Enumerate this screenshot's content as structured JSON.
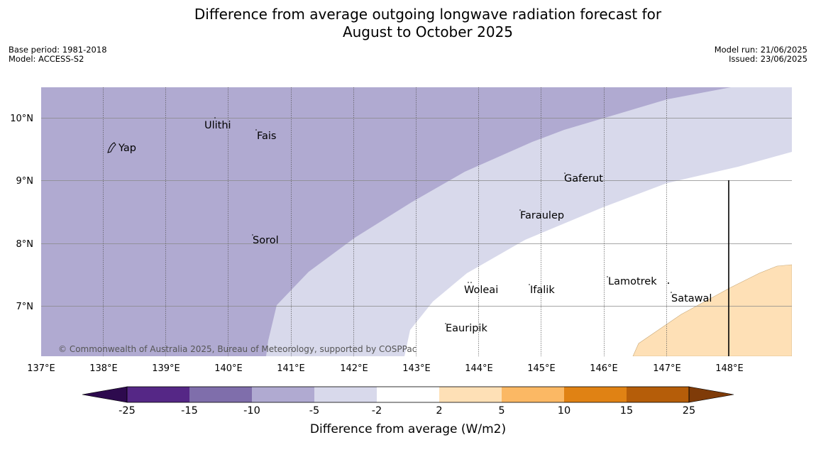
{
  "title": {
    "line1": "Difference from average outgoing longwave radiation forecast for",
    "line2": "August to October 2025"
  },
  "meta_left": {
    "base_period": "Base period: 1981-2018",
    "model": "Model: ACCESS-S2"
  },
  "meta_right": {
    "model_run": "Model run: 21/06/2025",
    "issued": "Issued: 23/06/2025"
  },
  "map": {
    "lon_ticks": [
      "137°E",
      "138°E",
      "139°E",
      "140°E",
      "141°E",
      "142°E",
      "143°E",
      "144°E",
      "145°E",
      "146°E",
      "147°E",
      "148°E"
    ],
    "lat_ticks": [
      "10°N",
      "9°N",
      "8°N",
      "7°N"
    ],
    "places": [
      {
        "name": "Yap",
        "lon": 138.2,
        "lat": 9.5
      },
      {
        "name": "Ulithi",
        "lon": 139.7,
        "lat": 9.95
      },
      {
        "name": "Fais",
        "lon": 140.5,
        "lat": 9.77
      },
      {
        "name": "Gaferut",
        "lon": 145.4,
        "lat": 9.2
      },
      {
        "name": "Faraulep",
        "lon": 144.6,
        "lat": 8.6
      },
      {
        "name": "Sorol",
        "lon": 140.4,
        "lat": 8.1
      },
      {
        "name": "Woleai",
        "lon": 143.9,
        "lat": 7.35
      },
      {
        "name": "Ifalik",
        "lon": 144.45,
        "lat": 7.25
      },
      {
        "name": "Lamotrek",
        "lon": 146.3,
        "lat": 7.5
      },
      {
        "name": "Satawal",
        "lon": 147.0,
        "lat": 7.35
      },
      {
        "name": "Eauripik",
        "lon": 143.0,
        "lat": 6.7
      }
    ],
    "credit": "© Commonwealth of Australia 2025, Bureau of Meteorology, supported by COSPPac"
  },
  "colorbar": {
    "ticks": [
      "-25",
      "-15",
      "-10",
      "-5",
      "-2",
      "2",
      "5",
      "10",
      "15",
      "25"
    ],
    "colors": [
      "#552786",
      "#7f6eab",
      "#b0aad1",
      "#d8d9eb",
      "#ffffff",
      "#fee0b6",
      "#fbb864",
      "#e08214",
      "#b55d09"
    ],
    "under_color": "#2d0a4e",
    "over_color": "#7f3b08",
    "label": "Difference from average (W/m2)"
  },
  "colors": {
    "dark_purple": "#b0aad1",
    "light_purple": "#d8d9eb",
    "light_orange": "#fee0b6",
    "outline": "#444444"
  }
}
